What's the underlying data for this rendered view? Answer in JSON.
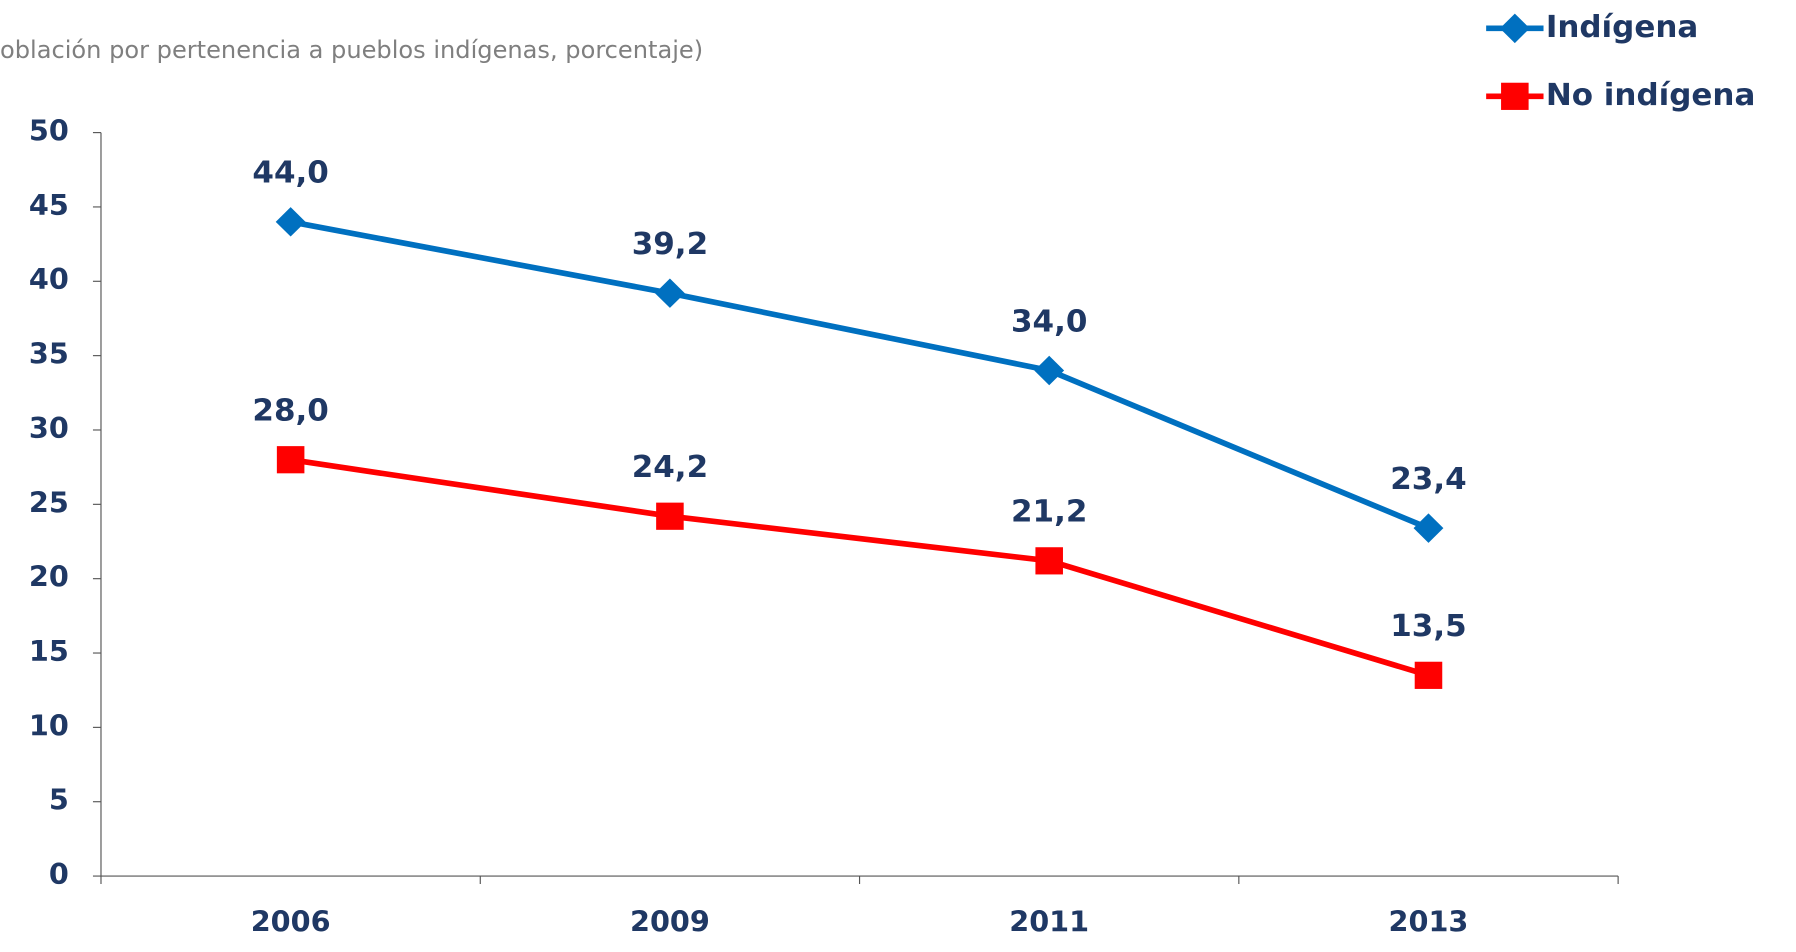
{
  "chart_data": {
    "type": "line",
    "subtitle": "oblación por pertenencia a pueblos indígenas, porcentaje)",
    "categories": [
      "2006",
      "2009",
      "2011",
      "2013"
    ],
    "series": [
      {
        "name": "Indígena",
        "color": "#0070c0",
        "marker": "diamond",
        "values": [
          44.0,
          39.2,
          34.0,
          23.4
        ],
        "value_labels": [
          "44,0",
          "39,2",
          "34,0",
          "23,4"
        ]
      },
      {
        "name": "No indígena",
        "color": "#ff0000",
        "marker": "square",
        "values": [
          28.0,
          24.2,
          21.2,
          13.5
        ],
        "value_labels": [
          "28,0",
          "24,2",
          "21,2",
          "13,5"
        ]
      }
    ],
    "ylim": [
      0,
      50
    ],
    "yticks": [
      0,
      5,
      10,
      15,
      20,
      25,
      30,
      35,
      40,
      45,
      50
    ],
    "grid": false,
    "legend": "top-right"
  }
}
